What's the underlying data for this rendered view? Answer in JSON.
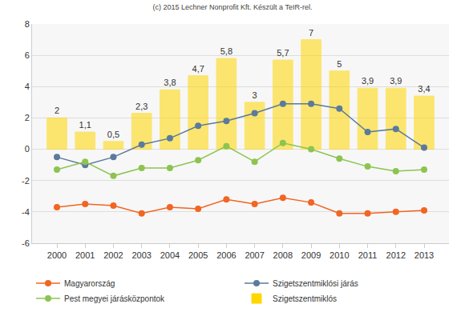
{
  "chart_data": {
    "type": "bar",
    "title": "(c) 2015 Lechner Nonprofit Kft. Készült a TeIR-rel.",
    "categories": [
      "2000",
      "2001",
      "2002",
      "2003",
      "2004",
      "2005",
      "2006",
      "2007",
      "2008",
      "2009",
      "2010",
      "2011",
      "2012",
      "2013"
    ],
    "series": [
      {
        "name": "Magyarország",
        "type": "line",
        "marker": "circle",
        "color": "#f26522",
        "values": [
          -3.7,
          -3.5,
          -3.6,
          -4.1,
          -3.7,
          -3.8,
          -3.2,
          -3.5,
          -3.1,
          -3.4,
          -4.1,
          -4.1,
          -4.0,
          -3.9
        ]
      },
      {
        "name": "Szigetszentmiklósi járás",
        "type": "line",
        "marker": "circle",
        "color": "#5b7a9c",
        "values": [
          -0.5,
          -1.0,
          -0.5,
          0.3,
          0.7,
          1.5,
          1.8,
          2.3,
          2.9,
          2.9,
          2.6,
          1.1,
          1.3,
          0.1
        ]
      },
      {
        "name": "Pest megyei járásközpontok",
        "type": "line",
        "marker": "circle",
        "color": "#8dc450",
        "values": [
          -1.3,
          -0.8,
          -1.7,
          -1.2,
          -1.2,
          -0.7,
          0.2,
          -0.8,
          0.4,
          0.0,
          -0.6,
          -1.1,
          -1.4,
          -1.3
        ]
      },
      {
        "name": "Szigetszentmiklós",
        "type": "bar",
        "color": "#ffd700",
        "data_labels": true,
        "values": [
          2,
          1.1,
          0.5,
          2.3,
          3.8,
          4.7,
          5.8,
          3,
          5.7,
          7,
          5,
          3.9,
          3.9,
          3.4
        ],
        "value_labels": [
          "2",
          "1,1",
          "0,5",
          "2,3",
          "3,8",
          "4,7",
          "5,8",
          "3",
          "5,7",
          "7",
          "5",
          "3,9",
          "3,9",
          "3,4"
        ]
      }
    ],
    "ylim": [
      -6,
      8
    ],
    "yticks": [
      -6,
      -4,
      -2,
      0,
      2,
      4,
      6,
      8
    ],
    "grid": true,
    "legend": "bottom"
  }
}
